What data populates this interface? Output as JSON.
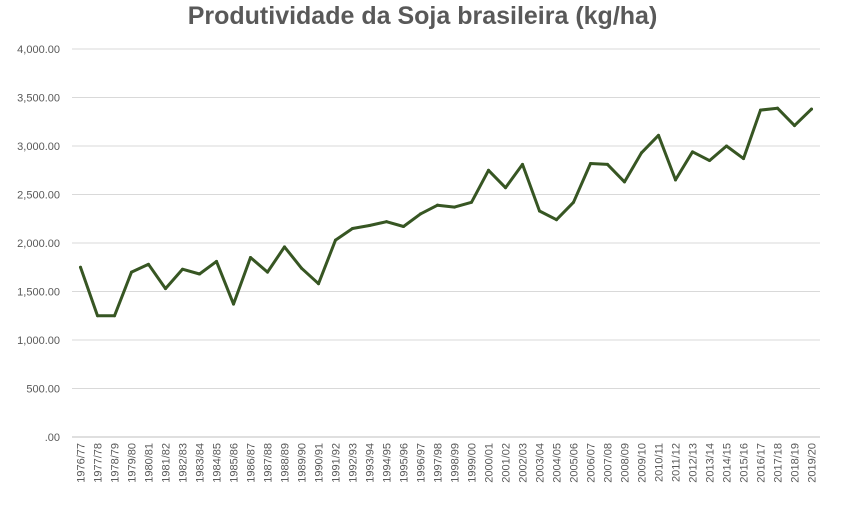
{
  "chart_data": {
    "type": "line",
    "title": "Produtividade da Soja brasileira (kg/ha)",
    "xlabel": "",
    "ylabel": "",
    "ylim": [
      0,
      4000
    ],
    "yticks": [
      ".00",
      "500.00",
      "1,000.00",
      "1,500.00",
      "2,000.00",
      "2,500.00",
      "3,000.00",
      "3,500.00",
      "4,000.00"
    ],
    "ytick_values": [
      0,
      500,
      1000,
      1500,
      2000,
      2500,
      3000,
      3500,
      4000
    ],
    "grid": true,
    "legend": "none",
    "categories": [
      "1976/77",
      "1977/78",
      "1978/79",
      "1979/80",
      "1980/81",
      "1981/82",
      "1982/83",
      "1983/84",
      "1984/85",
      "1985/86",
      "1986/87",
      "1987/88",
      "1988/89",
      "1989/90",
      "1990/91",
      "1991/92",
      "1992/93",
      "1993/94",
      "1994/95",
      "1995/96",
      "1996/97",
      "1997/98",
      "1998/99",
      "1999/00",
      "2000/01",
      "2001/02",
      "2002/03",
      "2003/04",
      "2004/05",
      "2005/06",
      "2006/07",
      "2007/08",
      "2008/09",
      "2009/10",
      "2010/11",
      "2011/12",
      "2012/13",
      "2013/14",
      "2014/15",
      "2015/16",
      "2016/17",
      "2017/18",
      "2018/19",
      "2019/20"
    ],
    "series": [
      {
        "values": [
          1750,
          1250,
          1250,
          1700,
          1780,
          1530,
          1730,
          1680,
          1810,
          1370,
          1850,
          1700,
          1960,
          1740,
          1580,
          2030,
          2150,
          2180,
          2220,
          2170,
          2300,
          2390,
          2370,
          2420,
          2750,
          2570,
          2810,
          2330,
          2240,
          2420,
          2820,
          2810,
          2630,
          2930,
          3110,
          2650,
          2940,
          2850,
          3000,
          2870,
          3370,
          3390,
          3210,
          3380
        ],
        "color": "#375623"
      }
    ]
  }
}
